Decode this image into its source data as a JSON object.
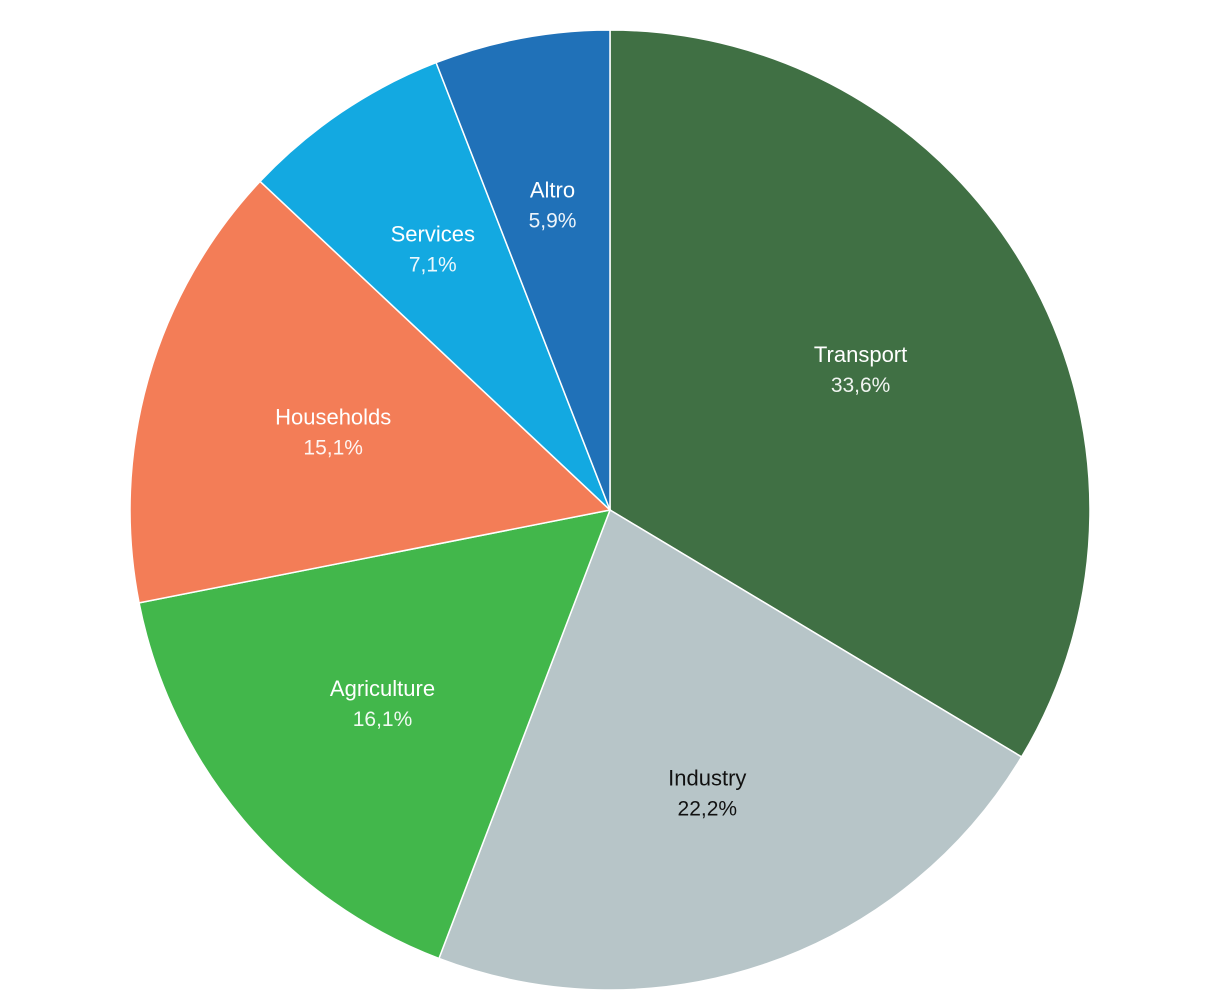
{
  "chart_data": {
    "type": "pie",
    "title": "",
    "start": "12 o'clock",
    "direction": "clockwise",
    "slices": [
      {
        "label": "Transport",
        "value": 33.6,
        "value_label": "33,6%",
        "color": "#407044",
        "label_color": "#ffffff"
      },
      {
        "label": "Industry",
        "value": 22.2,
        "value_label": "22,2%",
        "color": "#b7c5c8",
        "label_color": "#111111"
      },
      {
        "label": "Agriculture",
        "value": 16.1,
        "value_label": "16,1%",
        "color": "#42b74b",
        "label_color": "#ffffff"
      },
      {
        "label": "Households",
        "value": 15.1,
        "value_label": "15,1%",
        "color": "#f37d57",
        "label_color": "#ffffff"
      },
      {
        "label": "Services",
        "value": 7.1,
        "value_label": "7,1%",
        "color": "#13a9e1",
        "label_color": "#ffffff"
      },
      {
        "label": "Altro",
        "value": 5.9,
        "value_label": "5,9%",
        "color": "#2071b8",
        "label_color": "#ffffff"
      }
    ]
  }
}
